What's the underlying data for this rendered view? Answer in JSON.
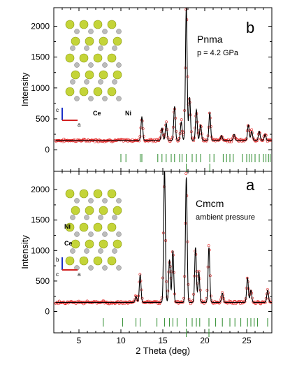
{
  "chart_data": [
    {
      "type": "line",
      "panel_label": "b",
      "phase": "Pnma",
      "condition": "p = 4.2 GPa",
      "ylabel": "Intensity",
      "xlim": [
        2,
        28
      ],
      "ylim": [
        -350,
        2300
      ],
      "yticks": [
        0,
        500,
        1000,
        1500,
        2000
      ],
      "background": 150,
      "peaks": [
        {
          "x": 12.5,
          "h": 380
        },
        {
          "x": 14.9,
          "h": 200
        },
        {
          "x": 15.4,
          "h": 280
        },
        {
          "x": 16.4,
          "h": 550
        },
        {
          "x": 17.2,
          "h": 300
        },
        {
          "x": 17.8,
          "h": 2150
        },
        {
          "x": 18.2,
          "h": 700
        },
        {
          "x": 19.0,
          "h": 500
        },
        {
          "x": 19.5,
          "h": 250
        },
        {
          "x": 20.6,
          "h": 450
        },
        {
          "x": 22.0,
          "h": 80
        },
        {
          "x": 23.5,
          "h": 100
        },
        {
          "x": 25.2,
          "h": 250
        },
        {
          "x": 25.6,
          "h": 150
        },
        {
          "x": 26.5,
          "h": 150
        },
        {
          "x": 27.2,
          "h": 100
        }
      ],
      "ticks_main": [
        10.0,
        10.6,
        12.3,
        12.5,
        14.4,
        14.9,
        15.4,
        16.0,
        16.4,
        17.0,
        17.3,
        17.8,
        18.5,
        19.0,
        19.5,
        20.6,
        21.1,
        22.2,
        22.6,
        23.0,
        23.4,
        24.5,
        25.0,
        25.3,
        25.6,
        26.0,
        26.5,
        27.0,
        27.3,
        27.6,
        27.8
      ],
      "ticks_secondary": [
        17.8,
        20.6
      ],
      "legend_atoms": [
        "Ce",
        "Ni"
      ],
      "axes_labels": [
        "c",
        "a"
      ]
    },
    {
      "type": "line",
      "panel_label": "a",
      "phase": "Cmcm",
      "condition": "ambient pressure",
      "ylabel": "Intensity",
      "xlabel": "2 Theta (deg)",
      "xlim": [
        2,
        28
      ],
      "ylim": [
        -350,
        2300
      ],
      "xticks": [
        5,
        10,
        15,
        20,
        25
      ],
      "yticks": [
        0,
        500,
        1000,
        1500,
        2000
      ],
      "background": 150,
      "peaks": [
        {
          "x": 11.8,
          "h": 100
        },
        {
          "x": 12.3,
          "h": 450
        },
        {
          "x": 15.2,
          "h": 2200
        },
        {
          "x": 15.8,
          "h": 700
        },
        {
          "x": 16.2,
          "h": 850
        },
        {
          "x": 17.8,
          "h": 2050
        },
        {
          "x": 18.9,
          "h": 900
        },
        {
          "x": 19.3,
          "h": 500
        },
        {
          "x": 20.5,
          "h": 900
        },
        {
          "x": 22.1,
          "h": 150
        },
        {
          "x": 25.1,
          "h": 400
        },
        {
          "x": 25.5,
          "h": 200
        },
        {
          "x": 27.5,
          "h": 200
        }
      ],
      "ticks_main": [
        7.9,
        10.2,
        11.8,
        12.3,
        14.3,
        15.2,
        15.8,
        16.2,
        16.7,
        17.8,
        18.5,
        19.0,
        19.4,
        20.5,
        21.3,
        22.1,
        23.0,
        23.6,
        24.3,
        25.1,
        25.5,
        25.9,
        26.3,
        27.5
      ],
      "ticks_secondary": [
        17.8,
        20.5
      ],
      "legend_atoms": [
        "Ni",
        "Ce"
      ],
      "axes_labels": [
        "b",
        "c",
        "a"
      ]
    }
  ]
}
